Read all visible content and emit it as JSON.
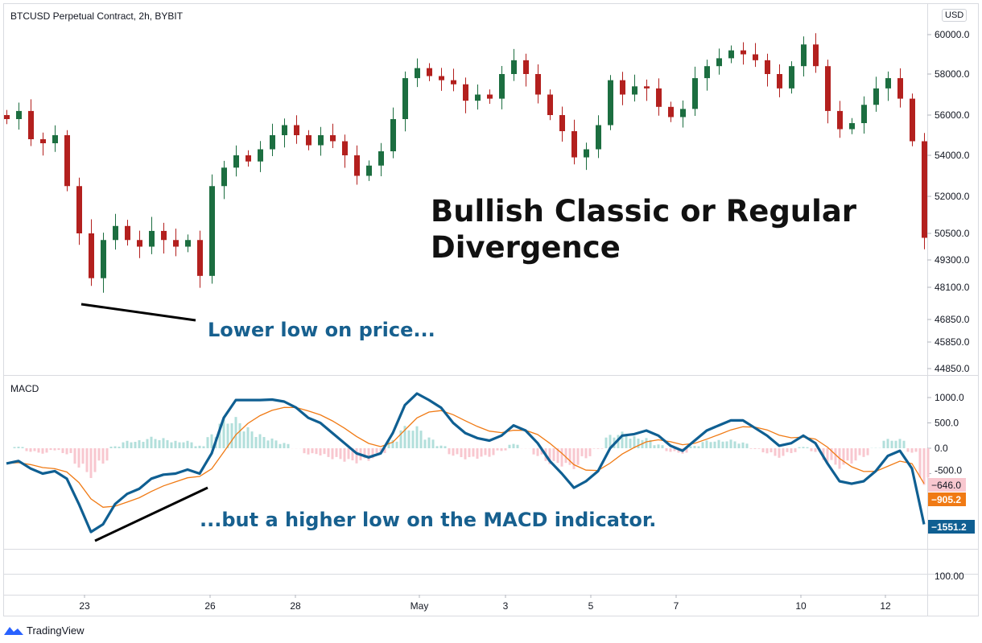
{
  "header": {
    "title": "BTCUSD Perpetual Contract, 2h, BYBIT",
    "currency_button": "USD"
  },
  "annotations": {
    "headline_line1": "Bullish Classic or Regular",
    "headline_line2": "Divergence",
    "price_note": "Lower low on price...",
    "macd_note": "...but a higher low on the MACD indicator."
  },
  "footer": {
    "brand": "TradingView"
  },
  "colors": {
    "up": "#1c6e40",
    "down": "#b3201e",
    "macd": "#0f5f92",
    "signal": "#f07a14",
    "hist_pos": "#b2dfdb",
    "hist_neg": "#f8c7cf",
    "note": "#17608f"
  },
  "chart_data": [
    {
      "type": "candlestick",
      "title": "BTCUSD Perpetual Contract, 2h, BYBIT",
      "y_ticks": [
        "60000.0",
        "58000.0",
        "56000.0",
        "54000.0",
        "52000.0",
        "50500.0",
        "49300.0",
        "48100.0",
        "46850.0",
        "45850.0",
        "44850.0"
      ],
      "x_ticks": [
        "23",
        "26",
        "28",
        "May",
        "3",
        "5",
        "7",
        "10",
        "12"
      ],
      "close": [
        55800,
        56200,
        54800,
        54600,
        55000,
        52500,
        50500,
        48500,
        50200,
        50800,
        50200,
        49900,
        50600,
        50200,
        49900,
        50200,
        48600,
        52500,
        53400,
        54000,
        53700,
        54300,
        55000,
        55500,
        55000,
        54500,
        55000,
        54700,
        54000,
        53000,
        53500,
        54200,
        55800,
        57800,
        58300,
        57900,
        57700,
        57500,
        56700,
        57000,
        56800,
        58000,
        58700,
        58000,
        57000,
        56000,
        55200,
        53900,
        54300,
        55500,
        57700,
        57000,
        57400,
        57300,
        56400,
        55900,
        56300,
        57800,
        58400,
        58800,
        59200,
        59000,
        58700,
        58000,
        57300,
        58400,
        59500,
        58400,
        56200,
        55300,
        55600,
        56500,
        57300,
        57800,
        56800,
        54700,
        50300
      ]
    },
    {
      "type": "line",
      "title": "MACD",
      "y_ticks": [
        "1000.0",
        "500.0",
        "0.0",
        "-500.0"
      ],
      "lower_pane_tick": "100.00",
      "macd": [
        -300,
        -250,
        -400,
        -500,
        -450,
        -600,
        -1100,
        -1650,
        -1500,
        -1100,
        -900,
        -800,
        -600,
        -520,
        -500,
        -420,
        -500,
        -100,
        600,
        950,
        950,
        950,
        960,
        920,
        800,
        600,
        500,
        300,
        100,
        -100,
        -180,
        -100,
        300,
        850,
        1080,
        950,
        800,
        500,
        300,
        200,
        150,
        250,
        450,
        350,
        100,
        -250,
        -500,
        -780,
        -650,
        -450,
        0,
        250,
        280,
        350,
        250,
        50,
        -50,
        150,
        350,
        450,
        550,
        550,
        400,
        250,
        50,
        100,
        250,
        100,
        -300,
        -650,
        -700,
        -650,
        -450,
        -150,
        -50,
        -400,
        -1500
      ],
      "last_values": {
        "histogram": "−646.0",
        "signal": "−905.2",
        "macd": "−1551.2"
      }
    }
  ]
}
